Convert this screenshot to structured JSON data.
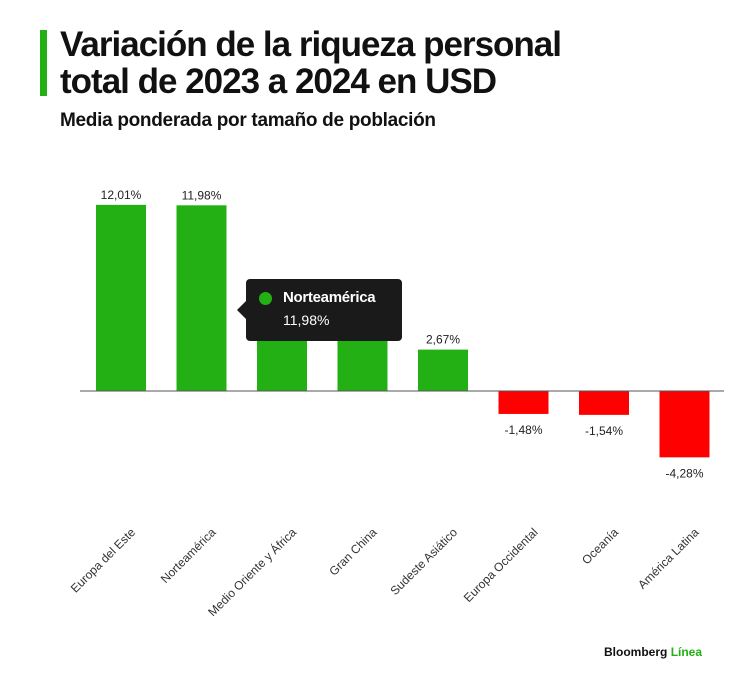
{
  "header": {
    "title_line1": "Variación de la riqueza personal",
    "title_line2": "total de 2023 a 2024 en USD",
    "subtitle": "Media ponderada por tamaño de población"
  },
  "chart_data": {
    "type": "bar",
    "title": "Variación de la riqueza personal total de 2023 a 2024 en USD",
    "subtitle": "Media ponderada por tamaño de población",
    "xlabel": "",
    "ylabel": "",
    "ylim": [
      -6,
      13
    ],
    "categories": [
      "Europa del Este",
      "Norteamérica",
      "Medio Oriente y África",
      "Gran China",
      "Sudeste Asiático",
      "Europa Occidental",
      "Oceanía",
      "América Latina"
    ],
    "values": [
      12.01,
      11.98,
      null,
      null,
      2.67,
      -1.48,
      -1.54,
      -4.28
    ],
    "data_labels": [
      "12,01%",
      "11,98%",
      "",
      "",
      "2,67%",
      "-1,48%",
      "-1,54%",
      "-4,28%"
    ],
    "grid": false,
    "positive_color": "#22b014",
    "negative_color": "#ff0000"
  },
  "tooltip": {
    "name": "Norteamérica",
    "value": "11,98%",
    "dot_color": "#22b014"
  },
  "footer": {
    "brand_main": "Bloomberg",
    "brand_accent": "Línea"
  }
}
